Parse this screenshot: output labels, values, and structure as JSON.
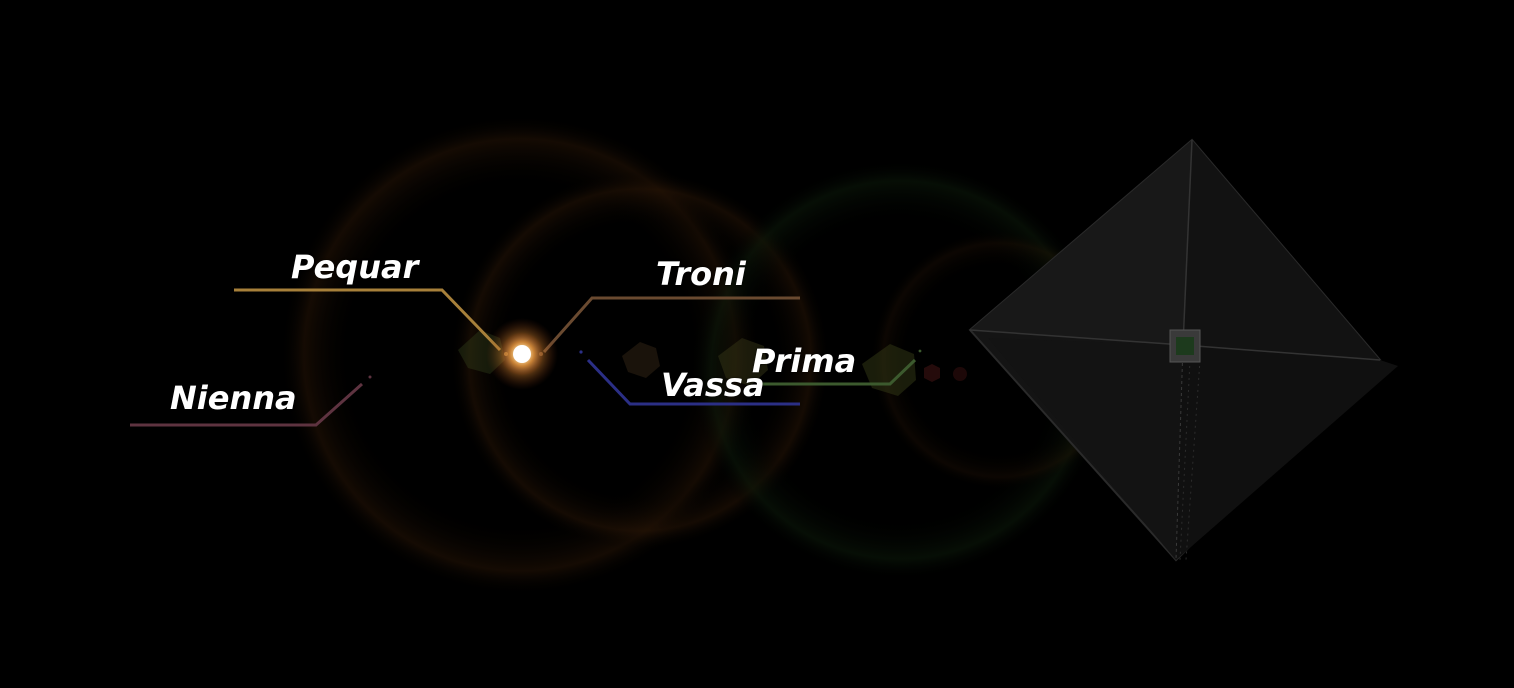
{
  "planets": [
    {
      "id": "pequar",
      "label": "Pequar",
      "color": "#a7803a"
    },
    {
      "id": "troni",
      "label": "Troni",
      "color": "#6a4a30"
    },
    {
      "id": "nienna",
      "label": "Nienna",
      "color": "#5e3340"
    },
    {
      "id": "vassa",
      "label": "Vassa",
      "color": "#2b2f86"
    },
    {
      "id": "prima",
      "label": "Prima",
      "color": "#3c5a2e"
    }
  ],
  "sun": {
    "color": "#ffd9a0"
  },
  "ship": {
    "name": "solar-sail-ship",
    "color": "#2a2a2a"
  }
}
